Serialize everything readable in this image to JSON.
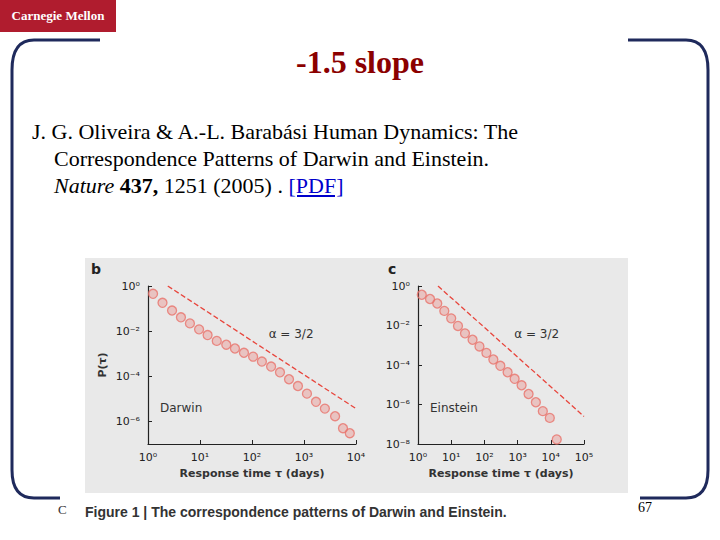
{
  "slide": {
    "logo": "Carnegie Mellon",
    "title": "-1.5 slope",
    "citation": [
      [
        {
          "text": "J. G. Oliveira & A.-L. Barabási Human Dynamics: The"
        }
      ],
      [
        {
          "text": "Correspondence Patterns of Darwin and Einstein."
        }
      ],
      [
        {
          "text": "Nature",
          "italic": true
        },
        {
          "text": " 437,",
          "bold": true
        },
        {
          "text": " 1251 (2005) . "
        },
        {
          "text": "[PDF]",
          "link": true
        }
      ]
    ],
    "caption": "Figure 1 | The correspondence patterns of Darwin and Einstein.",
    "footer_left": "C",
    "page": "67"
  },
  "chart_data": [
    {
      "type": "scatter",
      "panel": "b",
      "title": "Darwin",
      "x_label": "Response time τ (days)",
      "y_label": "P(τ)",
      "log": true,
      "marker": "circle",
      "color": "#e8736c",
      "x": [
        1.25,
        1.9,
        2.9,
        4.3,
        6.4,
        9.6,
        14,
        21,
        32,
        47,
        70,
        105,
        155,
        233,
        345,
        515,
        765,
        1140,
        1700,
        2520,
        3960,
        5620,
        7600
      ],
      "values": [
        0.45,
        0.18,
        0.082,
        0.041,
        0.022,
        0.012,
        0.0067,
        0.0037,
        0.0025,
        0.0017,
        0.0011,
        0.00074,
        0.00045,
        0.00027,
        0.00015,
        7.4e-05,
        3.7e-05,
        1.7e-05,
        7.4e-06,
        3.7e-06,
        1.7e-06,
        5e-07,
        3e-07
      ],
      "xlim": [
        1,
        10000
      ],
      "ylim": [
        1e-07,
        1
      ],
      "xticks": [
        {
          "value": 1,
          "label": "10⁰"
        },
        {
          "value": 10,
          "label": "10¹"
        },
        {
          "value": 100,
          "label": "10²"
        },
        {
          "value": 1000,
          "label": "10³"
        },
        {
          "value": 10000,
          "label": "10⁴"
        }
      ],
      "yticks": [
        {
          "value": 1e-06,
          "label": "10⁻⁶"
        },
        {
          "value": 0.0001,
          "label": "10⁻⁴"
        },
        {
          "value": 0.01,
          "label": "10⁻²"
        },
        {
          "value": 1,
          "label": "10⁰"
        }
      ],
      "reference_line": {
        "label": "α = 3/2",
        "x": [
          2.4,
          10000
        ],
        "y": [
          1,
          3.7e-06
        ],
        "line_style": "dashed",
        "color": "#e8453c"
      }
    },
    {
      "type": "scatter",
      "panel": "c",
      "title": "Einstein",
      "x_label": "Response time τ (days)",
      "log": true,
      "marker": "circle",
      "color": "#e8736c",
      "x": [
        1.3,
        2.3,
        3.8,
        6.2,
        10,
        16,
        26,
        44,
        71,
        115,
        186,
        302,
        500,
        813,
        1320,
        2140,
        3550,
        5750,
        9330,
        15100
      ],
      "values": [
        0.36,
        0.22,
        0.13,
        0.055,
        0.023,
        0.0095,
        0.004,
        0.0019,
        0.00087,
        0.00041,
        0.00019,
        9.1e-05,
        4.3e-05,
        2e-05,
        9.4e-06,
        3.4e-06,
        1.3e-06,
        4.6e-07,
        2.1e-07,
        1.7e-08
      ],
      "xlim": [
        1,
        100000
      ],
      "ylim": [
        1e-08,
        1
      ],
      "xticks": [
        {
          "value": 1,
          "label": "10⁰"
        },
        {
          "value": 10,
          "label": "10¹"
        },
        {
          "value": 100,
          "label": "10²"
        },
        {
          "value": 1000,
          "label": "10³"
        },
        {
          "value": 10000,
          "label": "10⁴"
        },
        {
          "value": 100000,
          "label": "10⁵"
        }
      ],
      "yticks": [
        {
          "value": 1e-08,
          "label": "10⁻⁸"
        },
        {
          "value": 1e-06,
          "label": "10⁻⁶"
        },
        {
          "value": 0.0001,
          "label": "10⁻⁴"
        },
        {
          "value": 0.01,
          "label": "10⁻²"
        },
        {
          "value": 1,
          "label": "10⁰"
        }
      ],
      "reference_line": {
        "label": "α = 3/2",
        "x": [
          4,
          100000
        ],
        "y": [
          1,
          2.5e-07
        ],
        "line_style": "dashed",
        "color": "#e8453c"
      }
    }
  ]
}
